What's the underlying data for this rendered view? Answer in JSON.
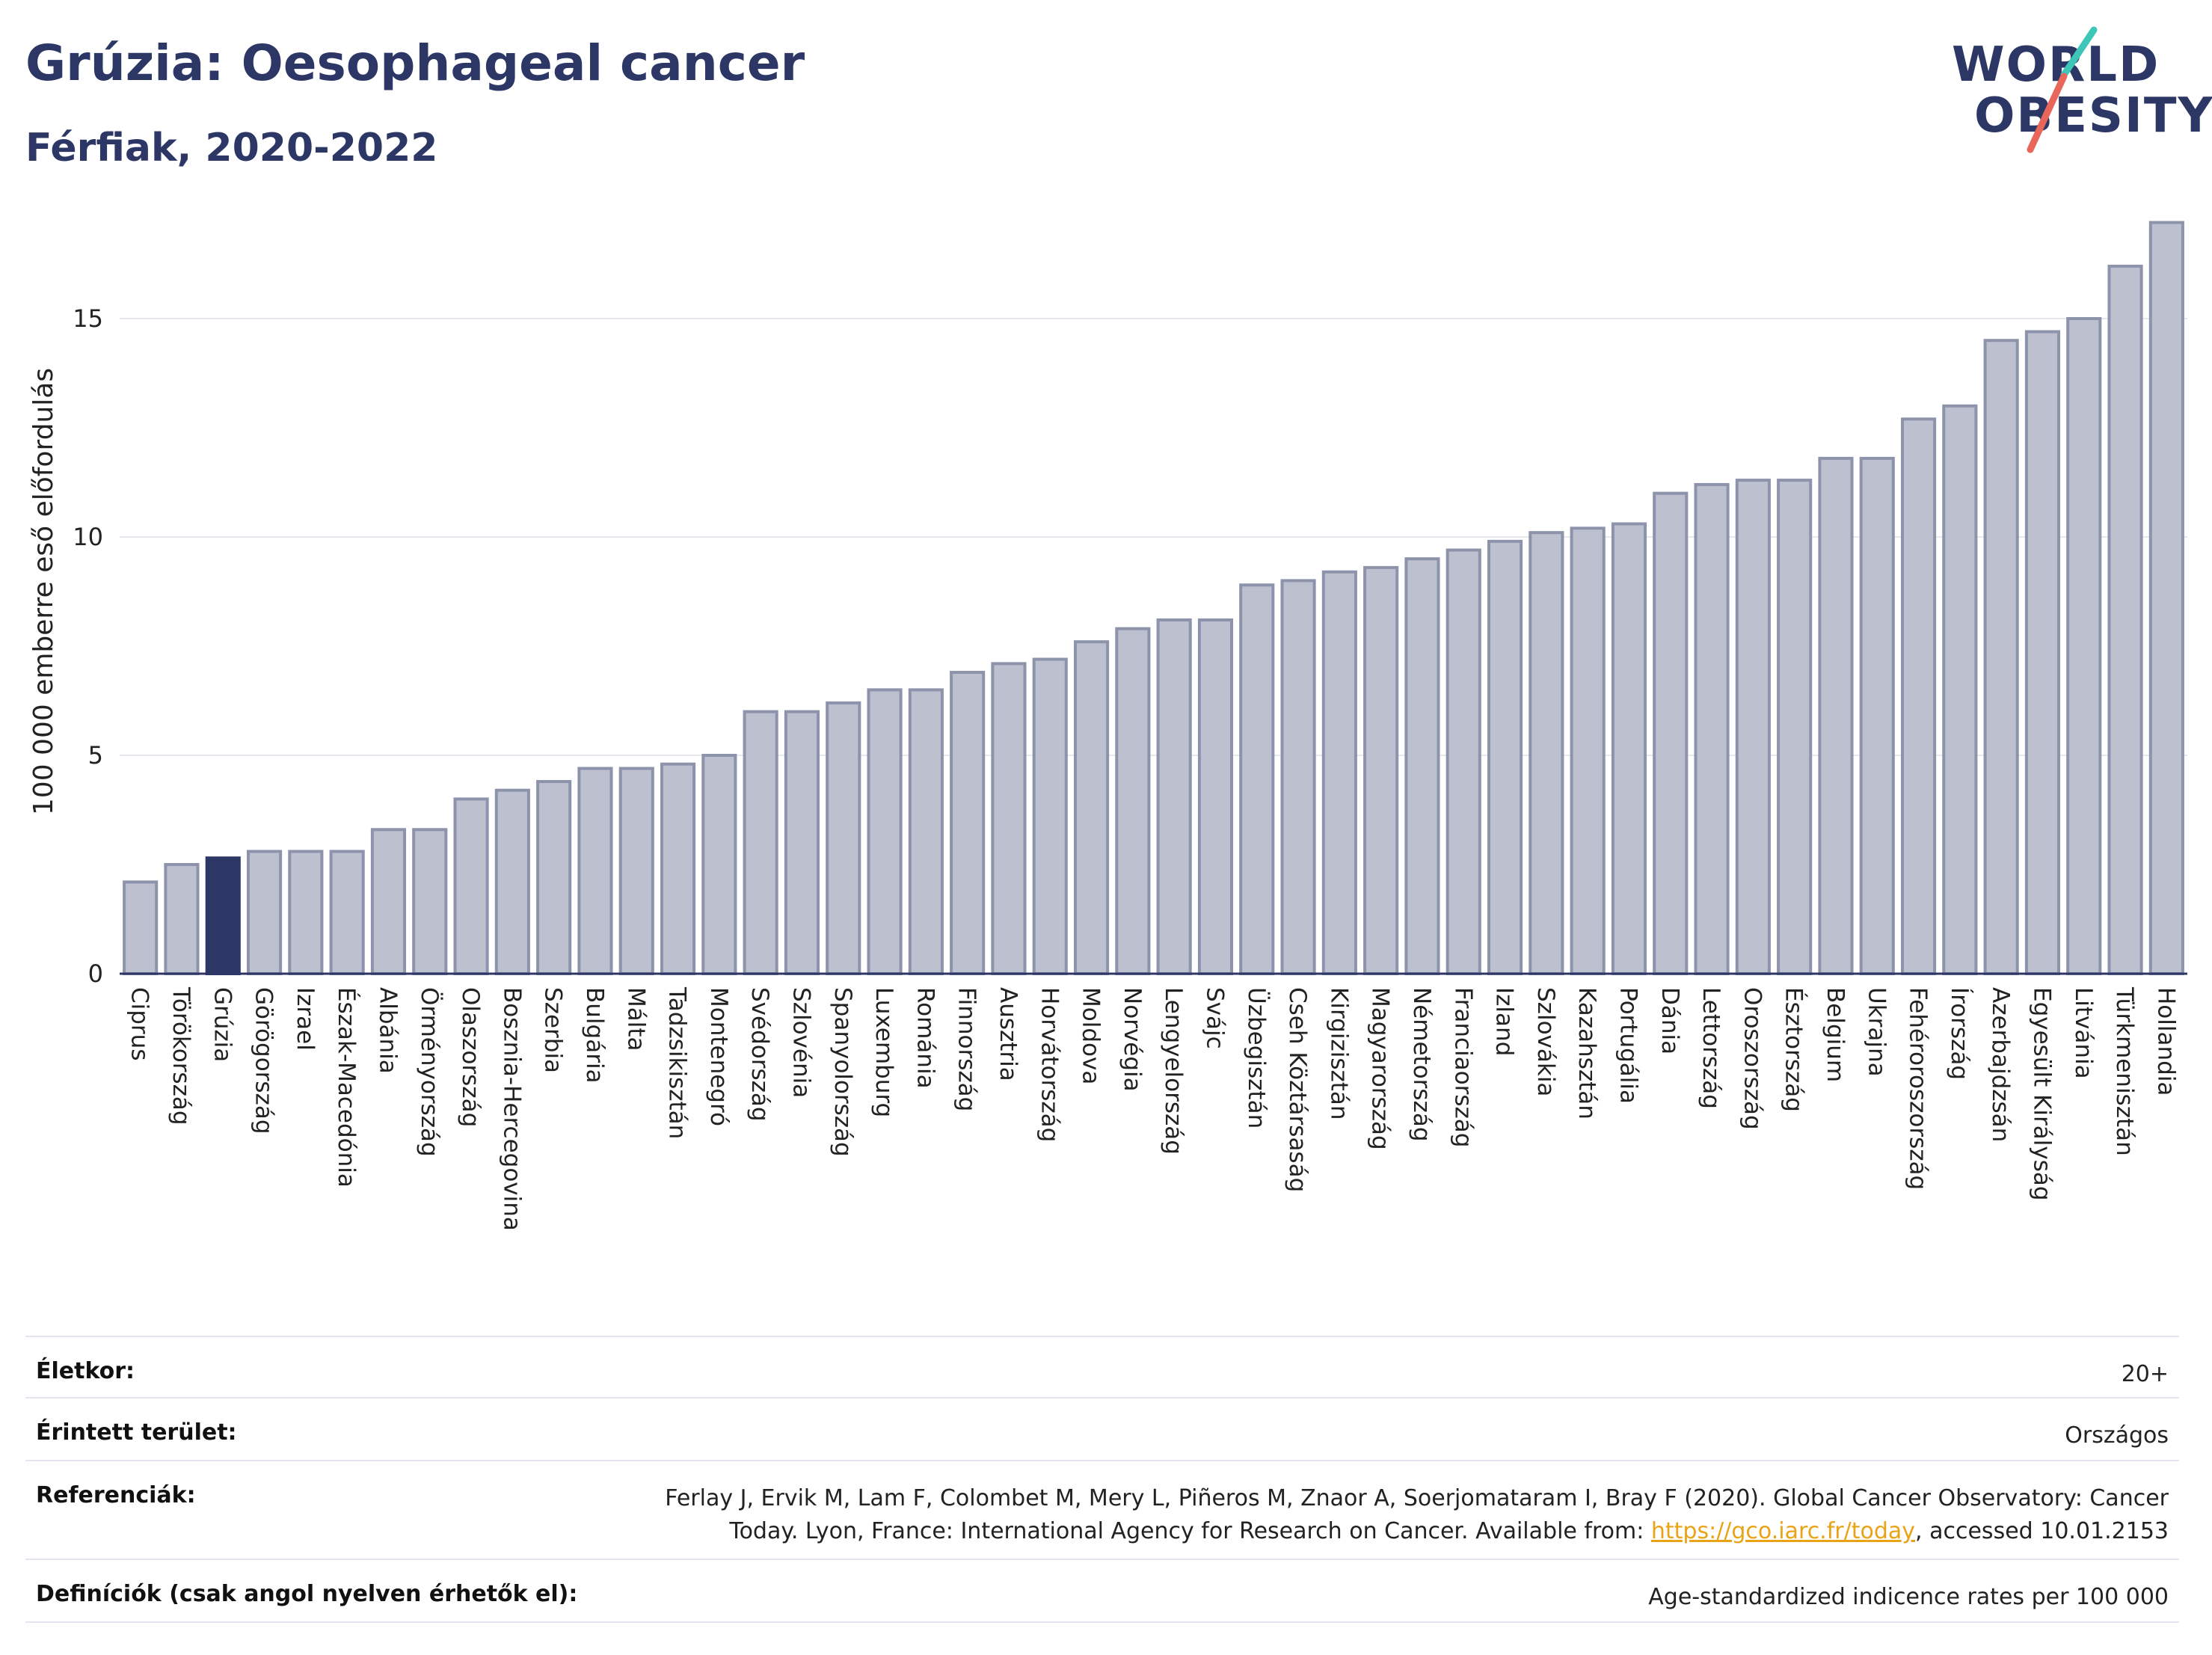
{
  "header": {
    "title": "Grúzia: Oesophageal cancer",
    "subtitle": "Férfiak, 2020-2022"
  },
  "logo": {
    "line1": "WORLD",
    "line2": "OBESITY",
    "accent_colors": [
      "#3ec6b8",
      "#e8675a"
    ]
  },
  "colors": {
    "bar": "#bcc0cf",
    "bar_border": "#8d93ab",
    "highlight": "#2d3766",
    "grid": "#e6e8ee",
    "axis": "#2d3766",
    "link": "#e8a317"
  },
  "chart_data": {
    "type": "bar",
    "ylabel": "100 000 emberre eső előfordulás",
    "ylim": [
      0,
      17.5
    ],
    "yticks": [
      0,
      5,
      10,
      15
    ],
    "grid": true,
    "highlight": "Grúzia",
    "categories": [
      "Ciprus",
      "Törökország",
      "Grúzia",
      "Görögország",
      "Izrael",
      "Észak-Macedónia",
      "Albánia",
      "Örményország",
      "Olaszország",
      "Bosznia-Hercegovina",
      "Szerbia",
      "Bulgária",
      "Málta",
      "Tadzsikisztán",
      "Montenegró",
      "Svédország",
      "Szlovénia",
      "Spanyolország",
      "Luxemburg",
      "Románia",
      "Finnország",
      "Ausztria",
      "Horvátország",
      "Moldova",
      "Norvégia",
      "Lengyelország",
      "Svájc",
      "Üzbegisztán",
      "Cseh Köztársaság",
      "Kirgizisztán",
      "Magyarország",
      "Németország",
      "Franciaország",
      "Izland",
      "Szlovákia",
      "Kazahsztán",
      "Portugália",
      "Dánia",
      "Lettország",
      "Oroszország",
      "Észtország",
      "Belgium",
      "Ukrajna",
      "Fehéroroszország",
      "Írország",
      "Azerbajdzsán",
      "Egyesült Királyság",
      "Litvánia",
      "Türkmenisztán",
      "Hollandia"
    ],
    "values": [
      2.1,
      2.5,
      2.65,
      2.8,
      2.8,
      2.8,
      3.3,
      3.3,
      4.0,
      4.2,
      4.4,
      4.7,
      4.7,
      4.8,
      5.0,
      6.0,
      6.0,
      6.2,
      6.5,
      6.5,
      6.9,
      7.1,
      7.2,
      7.6,
      7.9,
      8.1,
      8.1,
      8.9,
      9.0,
      9.2,
      9.3,
      9.5,
      9.7,
      9.9,
      10.1,
      10.2,
      10.3,
      11.0,
      11.2,
      11.3,
      11.3,
      11.8,
      11.8,
      12.7,
      13.0,
      14.5,
      14.7,
      15.0,
      16.2,
      17.2
    ]
  },
  "info": [
    {
      "label": "Életkor:",
      "value": "20+"
    },
    {
      "label": "Érintett terület:",
      "value": "Országos"
    },
    {
      "label": "Referenciák:",
      "value_line1": "Ferlay J, Ervik M, Lam F, Colombet M, Mery L, Piñeros M, Znaor A, Soerjomataram I, Bray F (2020). Global Cancer Observatory: Cancer",
      "value_line2_pre": "Today. Lyon, France: International Agency for Research on Cancer. Available from: ",
      "link_text": "https://gco.iarc.fr/today",
      "value_line2_post": ", accessed 10.01.2153"
    },
    {
      "label": "Definíciók (csak angol nyelven érhetők el):",
      "value": "Age-standardized indicence rates per 100 000"
    }
  ]
}
